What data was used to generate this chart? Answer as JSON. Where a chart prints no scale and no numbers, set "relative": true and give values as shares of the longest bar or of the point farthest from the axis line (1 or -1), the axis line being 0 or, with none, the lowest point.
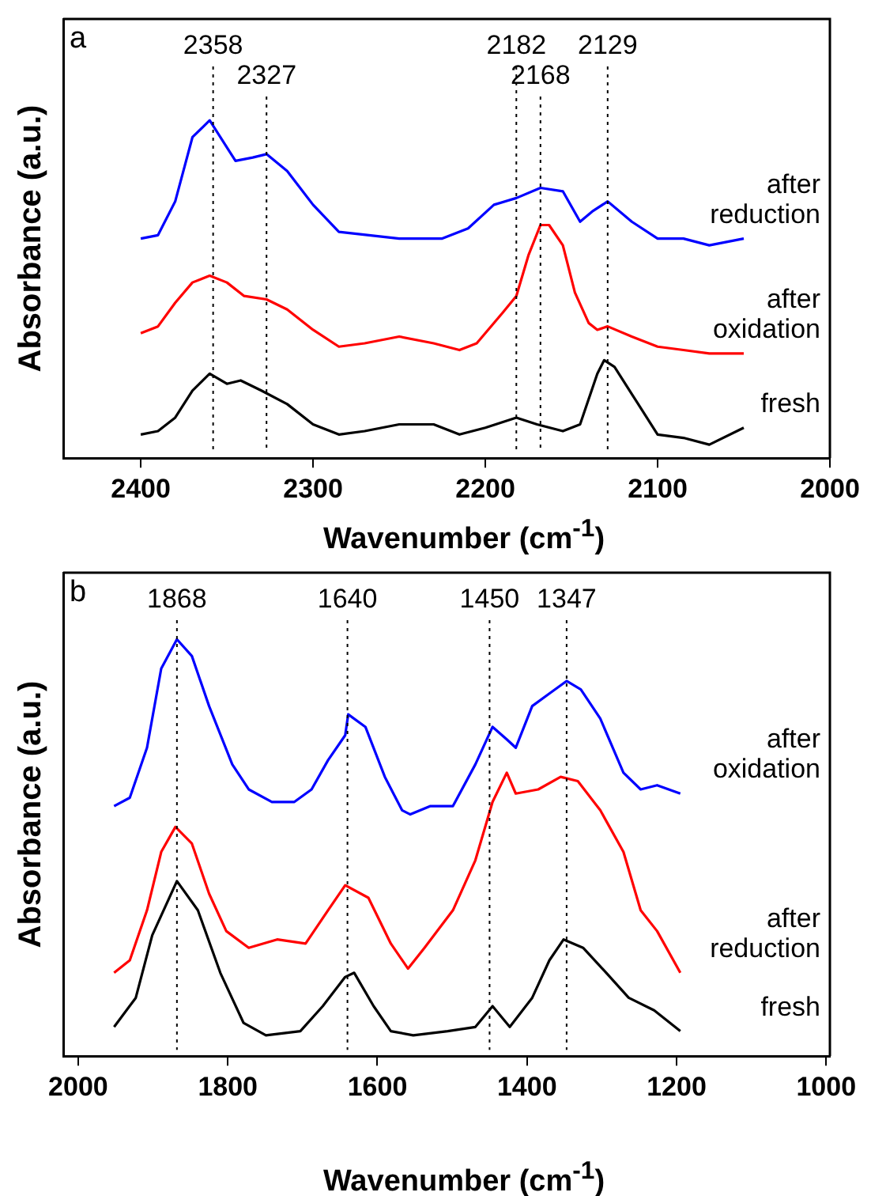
{
  "chart_data": [
    {
      "type": "line",
      "xlabel": "Wavenumber (cm$^{-1}$)",
      "ylabel": "Absorbance (a.u.)",
      "relative": true,
      "xlim": [
        2445,
        2000
      ],
      "xticks": [
        2400,
        2300,
        2200,
        2100,
        2000
      ],
      "grid": false,
      "legend": false,
      "marker": "none",
      "line_style": "solid",
      "annotations": [
        "a"
      ],
      "ref_lines": [
        {
          "axis": "x",
          "value": 2358,
          "label": "2358",
          "line_style": "dotted",
          "color": "#000000"
        },
        {
          "axis": "x",
          "value": 2327,
          "label": "2327",
          "line_style": "dotted",
          "color": "#000000"
        },
        {
          "axis": "x",
          "value": 2182,
          "label": "2182",
          "line_style": "dotted",
          "color": "#000000"
        },
        {
          "axis": "x",
          "value": 2168,
          "label": "2168",
          "line_style": "dotted",
          "color": "#000000"
        },
        {
          "axis": "x",
          "value": 2129,
          "label": "2129",
          "line_style": "dotted",
          "color": "#000000"
        }
      ],
      "series": [
        {
          "name": "after reduction",
          "color": "#0000ff",
          "x": [
            2400,
            2390,
            2380,
            2370,
            2360,
            2350,
            2345,
            2335,
            2327,
            2315,
            2300,
            2285,
            2250,
            2225,
            2210,
            2195,
            2182,
            2168,
            2155,
            2145,
            2138,
            2129,
            2115,
            2100,
            2085,
            2070,
            2050
          ],
          "values": [
            0.65,
            0.66,
            0.76,
            0.95,
            1.0,
            0.92,
            0.88,
            0.89,
            0.9,
            0.85,
            0.75,
            0.67,
            0.65,
            0.65,
            0.68,
            0.75,
            0.77,
            0.8,
            0.79,
            0.7,
            0.73,
            0.76,
            0.7,
            0.65,
            0.65,
            0.63,
            0.65
          ]
        },
        {
          "name": "after oxidation",
          "color": "#ff0000",
          "x": [
            2400,
            2390,
            2380,
            2370,
            2360,
            2350,
            2340,
            2327,
            2315,
            2300,
            2285,
            2270,
            2250,
            2230,
            2215,
            2205,
            2190,
            2182,
            2175,
            2168,
            2163,
            2155,
            2148,
            2140,
            2135,
            2129,
            2115,
            2100,
            2085,
            2070,
            2050
          ],
          "values": [
            0.37,
            0.39,
            0.46,
            0.52,
            0.54,
            0.52,
            0.48,
            0.47,
            0.44,
            0.38,
            0.33,
            0.34,
            0.36,
            0.34,
            0.32,
            0.34,
            0.43,
            0.48,
            0.6,
            0.69,
            0.69,
            0.63,
            0.49,
            0.4,
            0.38,
            0.39,
            0.36,
            0.33,
            0.32,
            0.31,
            0.31
          ]
        },
        {
          "name": "fresh",
          "color": "#000000",
          "x": [
            2400,
            2390,
            2380,
            2370,
            2360,
            2350,
            2342,
            2330,
            2315,
            2300,
            2285,
            2270,
            2250,
            2230,
            2215,
            2200,
            2182,
            2170,
            2155,
            2145,
            2135,
            2131,
            2125,
            2115,
            2100,
            2085,
            2070,
            2050
          ],
          "values": [
            0.07,
            0.08,
            0.12,
            0.2,
            0.25,
            0.22,
            0.23,
            0.2,
            0.16,
            0.1,
            0.07,
            0.08,
            0.1,
            0.1,
            0.07,
            0.09,
            0.12,
            0.1,
            0.08,
            0.1,
            0.25,
            0.29,
            0.27,
            0.19,
            0.07,
            0.06,
            0.04,
            0.09
          ]
        }
      ]
    },
    {
      "type": "line",
      "xlabel": "Wavenumber (cm$^{-1}$)",
      "ylabel": "Absorbance (a.u.)",
      "relative": true,
      "xlim": [
        2020,
        995
      ],
      "xticks": [
        2000,
        1800,
        1600,
        1400,
        1200,
        1000
      ],
      "grid": false,
      "legend": false,
      "marker": "none",
      "line_style": "solid",
      "annotations": [
        "b"
      ],
      "ref_lines": [
        {
          "axis": "x",
          "value": 1868,
          "label": "1868",
          "line_style": "dotted",
          "color": "#000000"
        },
        {
          "axis": "x",
          "value": 1640,
          "label": "1640",
          "line_style": "dotted",
          "color": "#000000"
        },
        {
          "axis": "x",
          "value": 1450,
          "label": "1450",
          "line_style": "dotted",
          "color": "#000000"
        },
        {
          "axis": "x",
          "value": 1347,
          "label": "1347",
          "line_style": "dotted",
          "color": "#000000"
        }
      ],
      "series": [
        {
          "name": "after oxidation",
          "color": "#0000ff",
          "x": [
            1952,
            1931,
            1908,
            1889,
            1868,
            1848,
            1825,
            1794,
            1772,
            1741,
            1711,
            1688,
            1666,
            1643,
            1639,
            1616,
            1590,
            1567,
            1556,
            1529,
            1499,
            1469,
            1446,
            1427,
            1415,
            1393,
            1370,
            1347,
            1328,
            1302,
            1271,
            1248,
            1226,
            1195
          ],
          "values": [
            0.6,
            0.62,
            0.74,
            0.93,
            1.0,
            0.96,
            0.84,
            0.7,
            0.64,
            0.61,
            0.61,
            0.64,
            0.71,
            0.77,
            0.82,
            0.79,
            0.67,
            0.59,
            0.58,
            0.6,
            0.6,
            0.7,
            0.79,
            0.76,
            0.74,
            0.84,
            0.87,
            0.9,
            0.88,
            0.81,
            0.68,
            0.64,
            0.65,
            0.63
          ]
        },
        {
          "name": "after reduction",
          "color": "#ff0000",
          "x": [
            1952,
            1931,
            1908,
            1889,
            1870,
            1848,
            1825,
            1802,
            1772,
            1734,
            1696,
            1666,
            1643,
            1612,
            1582,
            1559,
            1537,
            1499,
            1469,
            1446,
            1427,
            1415,
            1385,
            1355,
            1332,
            1302,
            1271,
            1248,
            1226,
            1195
          ],
          "values": [
            0.2,
            0.23,
            0.35,
            0.49,
            0.55,
            0.51,
            0.39,
            0.3,
            0.26,
            0.28,
            0.27,
            0.35,
            0.41,
            0.38,
            0.27,
            0.21,
            0.26,
            0.35,
            0.47,
            0.61,
            0.68,
            0.63,
            0.64,
            0.67,
            0.66,
            0.59,
            0.49,
            0.35,
            0.3,
            0.2
          ]
        },
        {
          "name": "fresh",
          "color": "#000000",
          "x": [
            1952,
            1923,
            1901,
            1868,
            1840,
            1810,
            1779,
            1749,
            1703,
            1673,
            1643,
            1631,
            1605,
            1582,
            1552,
            1506,
            1469,
            1446,
            1423,
            1393,
            1370,
            1351,
            1325,
            1294,
            1264,
            1230,
            1195
          ],
          "values": [
            0.07,
            0.14,
            0.29,
            0.42,
            0.35,
            0.2,
            0.08,
            0.05,
            0.06,
            0.12,
            0.19,
            0.2,
            0.12,
            0.06,
            0.05,
            0.06,
            0.07,
            0.12,
            0.07,
            0.14,
            0.23,
            0.28,
            0.26,
            0.2,
            0.14,
            0.11,
            0.06
          ]
        }
      ]
    }
  ]
}
